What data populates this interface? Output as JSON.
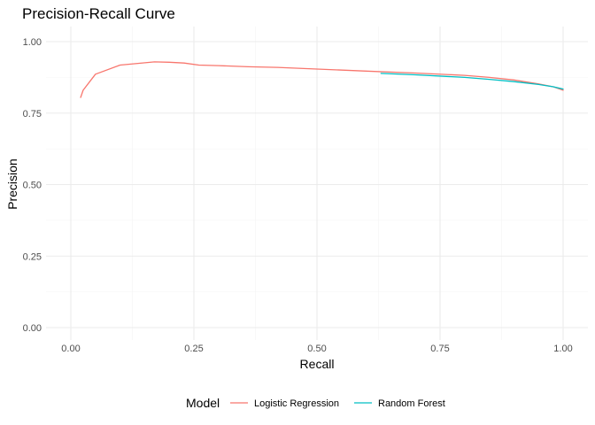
{
  "chart_data": {
    "type": "line",
    "title": "Precision-Recall Curve",
    "xlabel": "Recall",
    "ylabel": "Precision",
    "xlim": [
      0,
      1
    ],
    "ylim": [
      0,
      1
    ],
    "x_ticks": [
      "0.00",
      "0.25",
      "0.50",
      "0.75",
      "1.00"
    ],
    "y_ticks": [
      "0.00",
      "0.25",
      "0.50",
      "0.75",
      "1.00"
    ],
    "grid": true,
    "legend": {
      "title": "Model",
      "position": "bottom"
    },
    "series": [
      {
        "name": "Logistic Regression",
        "color": "#F8766D",
        "x": [
          0.02,
          0.022,
          0.025,
          0.05,
          0.1,
          0.17,
          0.2,
          0.23,
          0.26,
          0.3,
          0.36,
          0.42,
          0.5,
          0.6,
          0.7,
          0.8,
          0.85,
          0.9,
          0.95,
          0.98,
          1.0
        ],
        "y": [
          0.805,
          0.815,
          0.83,
          0.886,
          0.918,
          0.929,
          0.928,
          0.925,
          0.918,
          0.916,
          0.912,
          0.91,
          0.904,
          0.897,
          0.89,
          0.882,
          0.875,
          0.866,
          0.852,
          0.842,
          0.83
        ]
      },
      {
        "name": "Random Forest",
        "color": "#00BFC4",
        "x": [
          0.63,
          0.7,
          0.8,
          0.85,
          0.9,
          0.95,
          0.98,
          1.0
        ],
        "y": [
          0.889,
          0.884,
          0.875,
          0.868,
          0.86,
          0.85,
          0.842,
          0.834
        ]
      }
    ]
  }
}
